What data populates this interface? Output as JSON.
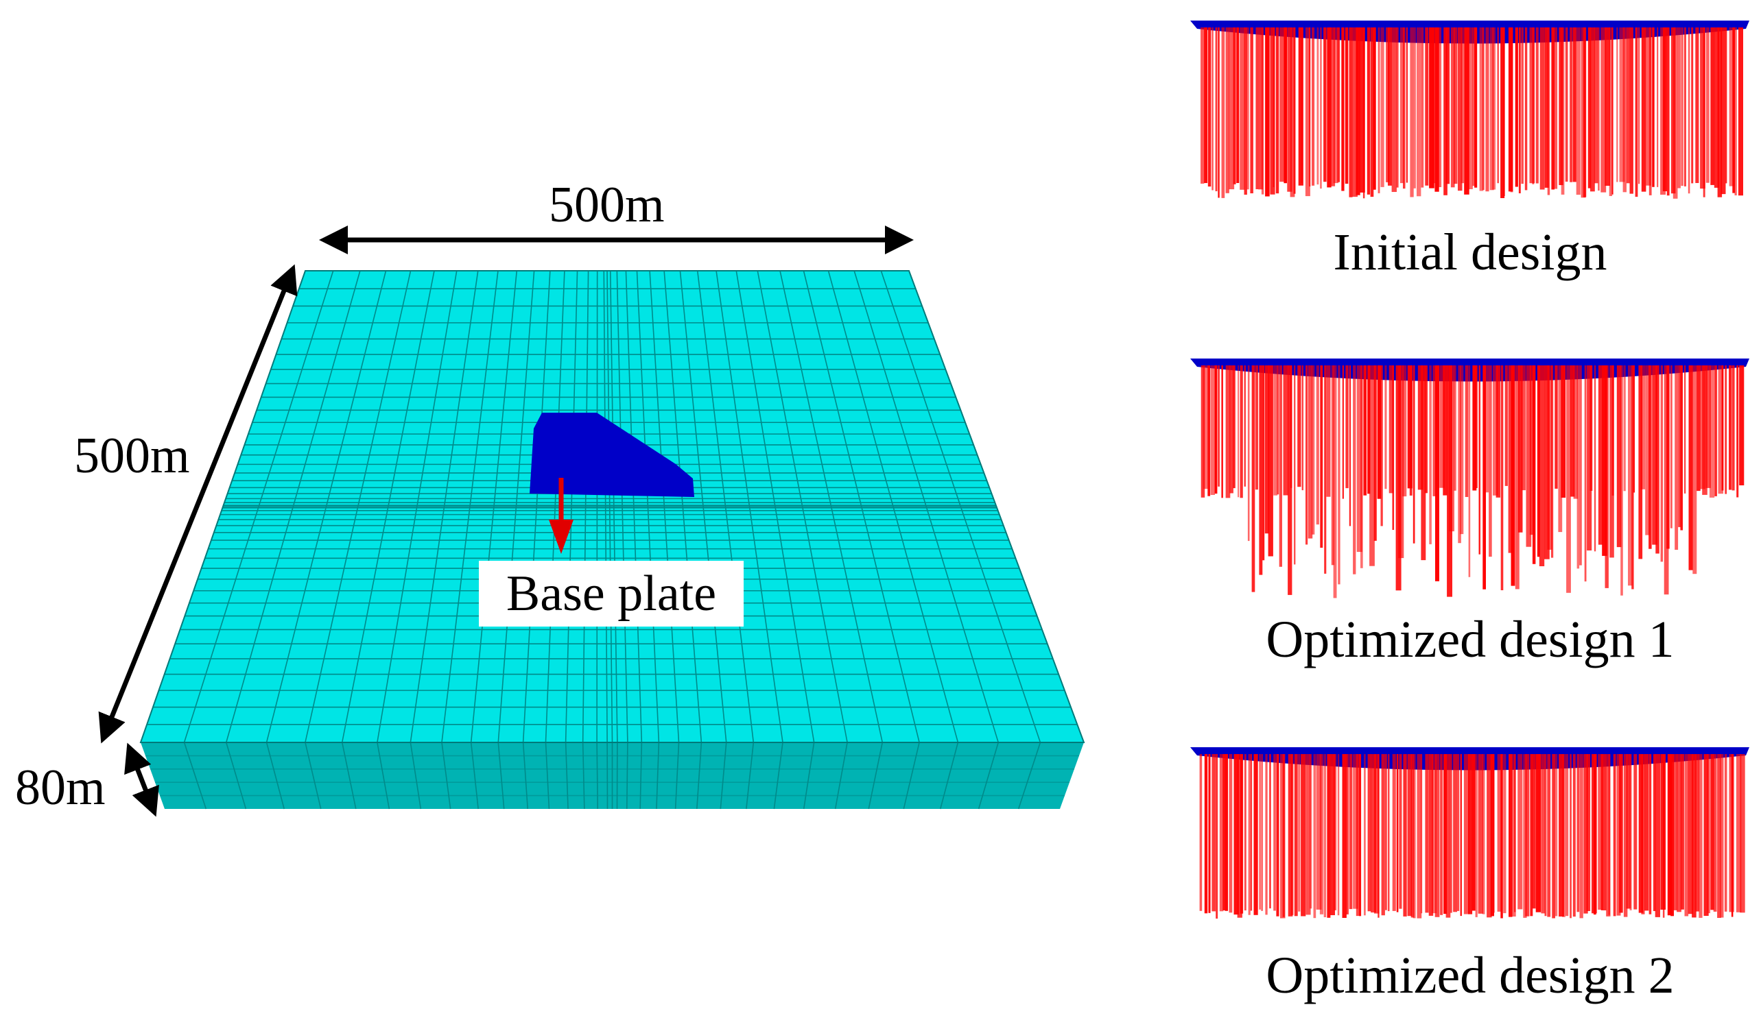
{
  "dimensions": {
    "width": "500m",
    "depth": "500m",
    "thickness": "80m"
  },
  "labels": {
    "base_plate": "Base plate"
  },
  "designs": [
    {
      "caption": "Initial design"
    },
    {
      "caption": "Optimized design 1"
    },
    {
      "caption": "Optimized design 2"
    }
  ],
  "colors": {
    "soil_top": "#00e5e5",
    "soil_side": "#00b3b3",
    "mesh_line": "#008a8a",
    "plate": "#0000c8",
    "piles": "#ff0000",
    "arrow": "#e00000",
    "dimension_line": "#000000"
  }
}
